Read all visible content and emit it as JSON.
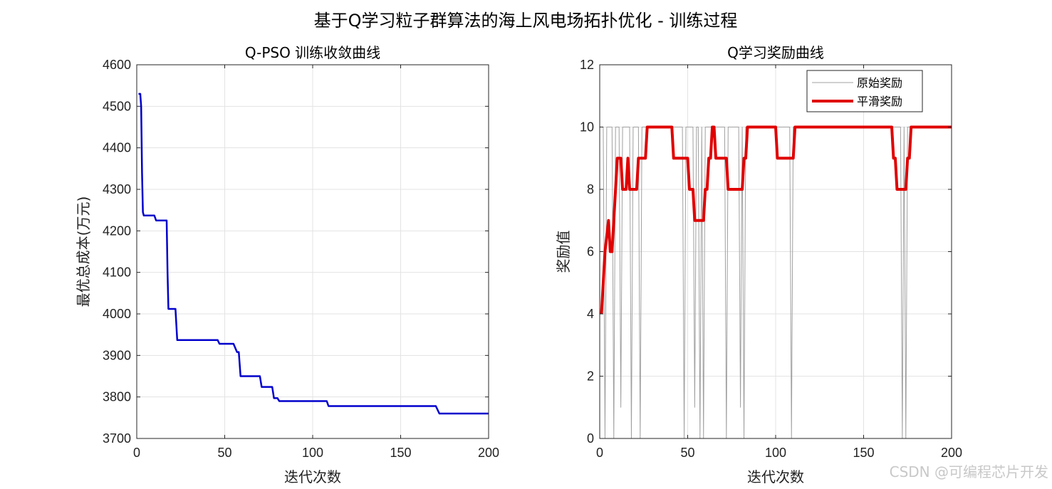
{
  "figure": {
    "suptitle": "基于Q学习粒子群算法的海上风电场拓扑优化 - 训练过程",
    "watermark": "CSDN @可编程芯片开发"
  },
  "chart_data": [
    {
      "type": "line",
      "title": "Q-PSO 训练收敛曲线",
      "xlabel": "迭代次数",
      "ylabel": "最优总成本(万元)",
      "xlim": [
        0,
        200
      ],
      "ylim": [
        3700,
        4600
      ],
      "xticks": [
        0,
        50,
        100,
        150,
        200
      ],
      "yticks": [
        3700,
        3800,
        3900,
        4000,
        4100,
        4200,
        4300,
        4400,
        4500,
        4600
      ],
      "grid": true,
      "series": [
        {
          "color": "#0000cc",
          "x": [
            1,
            2,
            2.5,
            3,
            3.5,
            4,
            5,
            10,
            11,
            17,
            17.5,
            18,
            22,
            23,
            46,
            47,
            55,
            56,
            57,
            58,
            59,
            70,
            71,
            77,
            78,
            80,
            81,
            108,
            109,
            170,
            172,
            200
          ],
          "y": [
            4530,
            4530,
            4500,
            4340,
            4245,
            4237,
            4237,
            4237,
            4225,
            4225,
            4100,
            4012,
            4012,
            3937,
            3937,
            3928,
            3928,
            3918,
            3908,
            3908,
            3850,
            3850,
            3824,
            3824,
            3797,
            3797,
            3790,
            3790,
            3778,
            3778,
            3760,
            3760
          ]
        }
      ]
    },
    {
      "type": "line",
      "title": "Q学习奖励曲线",
      "xlabel": "迭代次数",
      "ylabel": "奖励值",
      "xlim": [
        0,
        200
      ],
      "ylim": [
        0,
        12
      ],
      "xticks": [
        0,
        50,
        100,
        150,
        200
      ],
      "yticks": [
        0,
        2,
        4,
        6,
        8,
        10,
        12
      ],
      "grid": true,
      "legend": "top-right",
      "series": [
        {
          "name": "原始奖励",
          "color": "#a0a0a0",
          "x": [
            1,
            2,
            3,
            4,
            5,
            6,
            7,
            8,
            9,
            10,
            11,
            12,
            13,
            14,
            15,
            16,
            17,
            18,
            19,
            20,
            21,
            22,
            23,
            24,
            25,
            26,
            27,
            28,
            29,
            30,
            31,
            32,
            33,
            34,
            35,
            36,
            37,
            38,
            39,
            40,
            41,
            42,
            43,
            44,
            45,
            46,
            47,
            48,
            49,
            50,
            51,
            52,
            53,
            54,
            55,
            56,
            57,
            58,
            59,
            60,
            61,
            62,
            63,
            64,
            65,
            66,
            67,
            68,
            69,
            70,
            71,
            72,
            73,
            74,
            75,
            76,
            77,
            78,
            79,
            80,
            81,
            82,
            83,
            84,
            85,
            86,
            87,
            88,
            89,
            90,
            91,
            92,
            93,
            94,
            95,
            96,
            97,
            98,
            99,
            100,
            101,
            102,
            103,
            104,
            105,
            106,
            107,
            108,
            109,
            110,
            111,
            112,
            113,
            114,
            115,
            116,
            117,
            118,
            119,
            120,
            121,
            122,
            123,
            124,
            125,
            126,
            127,
            128,
            129,
            130,
            131,
            132,
            133,
            134,
            135,
            136,
            137,
            138,
            139,
            140,
            141,
            142,
            143,
            144,
            145,
            146,
            147,
            148,
            149,
            150,
            151,
            152,
            153,
            154,
            155,
            156,
            157,
            158,
            159,
            160,
            161,
            162,
            163,
            164,
            165,
            166,
            167,
            168,
            169,
            170,
            171,
            172,
            173,
            174,
            175,
            176,
            177,
            178,
            179,
            180,
            181,
            182,
            183,
            184,
            185,
            186,
            187,
            188,
            189,
            190,
            191,
            192,
            193,
            194,
            195,
            196,
            197,
            198,
            199,
            200
          ],
          "y": [
            10,
            10,
            0,
            10,
            10,
            10,
            10,
            0,
            10,
            10,
            10,
            1,
            10,
            10,
            10,
            10,
            10,
            0,
            10,
            10,
            10,
            10,
            0,
            10,
            10,
            10,
            10,
            10,
            10,
            10,
            10,
            10,
            10,
            10,
            10,
            10,
            10,
            10,
            10,
            10,
            10,
            10,
            10,
            10,
            10,
            10,
            10,
            0,
            10,
            10,
            10,
            10,
            10,
            1,
            10,
            10,
            0,
            10,
            0,
            10,
            10,
            10,
            10,
            10,
            10,
            10,
            10,
            10,
            10,
            10,
            10,
            0,
            10,
            10,
            10,
            10,
            10,
            10,
            10,
            1,
            10,
            0,
            10,
            10,
            10,
            10,
            10,
            10,
            10,
            10,
            10,
            10,
            10,
            10,
            10,
            10,
            10,
            10,
            10,
            10,
            10,
            10,
            10,
            10,
            10,
            10,
            10,
            10,
            0,
            10,
            10,
            10,
            10,
            10,
            10,
            10,
            10,
            10,
            10,
            10,
            10,
            10,
            10,
            10,
            10,
            10,
            10,
            10,
            10,
            10,
            10,
            10,
            10,
            10,
            10,
            10,
            10,
            10,
            10,
            10,
            10,
            10,
            10,
            10,
            10,
            10,
            10,
            10,
            10,
            10,
            10,
            10,
            10,
            10,
            10,
            10,
            10,
            10,
            10,
            10,
            10,
            10,
            10,
            10,
            10,
            10,
            10,
            10,
            10,
            10,
            10,
            0,
            10,
            0,
            10,
            10,
            10,
            10,
            10,
            10,
            10,
            10,
            10,
            10,
            10,
            10,
            10,
            10,
            10,
            10,
            10,
            10,
            10,
            10,
            10,
            10,
            10,
            10,
            10,
            10
          ]
        },
        {
          "name": "平滑奖励",
          "color": "#e00000",
          "x": [
            1,
            2,
            3,
            4,
            5,
            6,
            7,
            8,
            9,
            10,
            11,
            12,
            13,
            14,
            15,
            16,
            17,
            18,
            19,
            20,
            21,
            22,
            23,
            24,
            25,
            26,
            27,
            28,
            29,
            30,
            31,
            32,
            33,
            34,
            35,
            36,
            37,
            38,
            39,
            40,
            41,
            42,
            43,
            44,
            45,
            46,
            47,
            48,
            49,
            50,
            51,
            52,
            53,
            54,
            55,
            56,
            57,
            58,
            59,
            60,
            61,
            62,
            63,
            64,
            65,
            66,
            67,
            68,
            69,
            70,
            71,
            72,
            73,
            74,
            75,
            76,
            77,
            78,
            79,
            80,
            81,
            82,
            83,
            84,
            85,
            86,
            87,
            88,
            89,
            90,
            91,
            92,
            93,
            94,
            95,
            96,
            97,
            98,
            99,
            100,
            101,
            102,
            103,
            104,
            105,
            106,
            107,
            108,
            109,
            110,
            111,
            112,
            113,
            114,
            115,
            116,
            117,
            118,
            119,
            120,
            121,
            122,
            123,
            124,
            125,
            126,
            127,
            128,
            129,
            130,
            131,
            132,
            133,
            134,
            135,
            136,
            137,
            138,
            139,
            140,
            141,
            142,
            143,
            144,
            145,
            146,
            147,
            148,
            149,
            150,
            151,
            152,
            153,
            154,
            155,
            156,
            157,
            158,
            159,
            160,
            161,
            162,
            163,
            164,
            165,
            166,
            167,
            168,
            169,
            170,
            171,
            172,
            173,
            174,
            175,
            176,
            177,
            178,
            179,
            180,
            181,
            182,
            183,
            184,
            185,
            186,
            187,
            188,
            189,
            190,
            191,
            192,
            193,
            194,
            195,
            196,
            197,
            198,
            199,
            200
          ],
          "y": [
            4,
            5,
            6,
            6.5,
            7,
            6,
            6,
            7,
            8,
            9,
            9,
            9,
            8,
            8,
            8,
            9,
            8,
            8,
            8,
            8,
            8,
            9,
            9,
            9,
            9,
            9,
            10,
            10,
            10,
            10,
            10,
            10,
            10,
            10,
            10,
            10,
            10,
            10,
            10,
            10,
            10,
            9,
            9,
            9,
            9,
            9,
            9,
            9,
            9,
            9,
            8,
            8,
            8,
            7,
            7,
            7,
            7,
            7,
            7,
            8,
            8,
            9,
            9,
            10,
            10,
            9,
            9,
            9,
            9,
            9,
            9,
            9,
            8,
            8,
            8,
            8,
            8,
            8,
            8,
            8,
            8,
            9,
            9,
            10,
            10,
            10,
            10,
            10,
            10,
            10,
            10,
            10,
            10,
            10,
            10,
            10,
            10,
            10,
            10,
            10,
            9,
            9,
            9,
            9,
            9,
            9,
            9,
            9,
            9,
            9,
            10,
            10,
            10,
            10,
            10,
            10,
            10,
            10,
            10,
            10,
            10,
            10,
            10,
            10,
            10,
            10,
            10,
            10,
            10,
            10,
            10,
            10,
            10,
            10,
            10,
            10,
            10,
            10,
            10,
            10,
            10,
            10,
            10,
            10,
            10,
            10,
            10,
            10,
            10,
            10,
            10,
            10,
            10,
            10,
            10,
            10,
            10,
            10,
            10,
            10,
            10,
            10,
            10,
            10,
            10,
            10,
            9,
            9,
            8,
            8,
            8,
            8,
            8,
            8,
            9,
            9,
            10,
            10,
            10,
            10,
            10,
            10,
            10,
            10,
            10,
            10,
            10,
            10,
            10,
            10,
            10,
            10,
            10,
            10,
            10,
            10,
            10,
            10,
            10,
            10
          ]
        }
      ]
    }
  ]
}
